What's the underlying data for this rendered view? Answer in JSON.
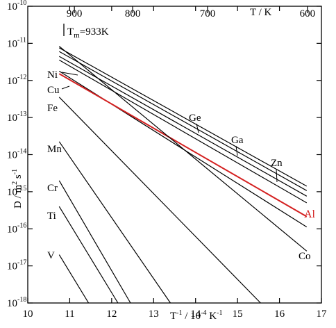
{
  "chart_data": {
    "type": "line",
    "xlabel_parts": [
      "T",
      "-1",
      " / 10",
      "-4",
      " K",
      "-1"
    ],
    "ylabel_parts": [
      "D / m",
      "2",
      " s",
      "-1"
    ],
    "top_axis_label": "T / K",
    "melting_label_parts": [
      "T",
      "m",
      "=933K"
    ],
    "melting_point_K": 933,
    "xlim": [
      10,
      17
    ],
    "ylim_log10": [
      -18,
      -10
    ],
    "y_scale": "log",
    "x_ticks": [
      10,
      11,
      12,
      13,
      14,
      15,
      16,
      17
    ],
    "y_tick_exponents": [
      -10,
      -11,
      -12,
      -13,
      -14,
      -15,
      -16,
      -17,
      -18
    ],
    "top_ticks_K": [
      {
        "label": "900",
        "value": 900
      },
      {
        "label": "800",
        "value": 800
      },
      {
        "label": "700",
        "value": 700
      },
      {
        "label": "600",
        "value": 600
      }
    ],
    "grid": false,
    "series": [
      {
        "name": "Ge",
        "color": "#000000",
        "x": [
          10.75,
          16.65
        ],
        "log10D": [
          -11.12,
          -14.85
        ]
      },
      {
        "name": "Ga",
        "color": "#000000",
        "x": [
          10.75,
          16.65
        ],
        "log10D": [
          -11.22,
          -14.97
        ]
      },
      {
        "name": "Zn",
        "color": "#000000",
        "x": [
          10.75,
          16.65
        ],
        "log10D": [
          -11.35,
          -15.12
        ]
      },
      {
        "name": "Ni",
        "color": "#000000",
        "x": [
          10.75,
          16.65
        ],
        "log10D": [
          -11.45,
          -15.3
        ]
      },
      {
        "name": "Cu",
        "color": "#000000",
        "x": [
          10.75,
          16.65
        ],
        "log10D": [
          -11.75,
          -15.95
        ]
      },
      {
        "name": "Al",
        "color": "#d42020",
        "x": [
          10.75,
          16.65
        ],
        "log10D": [
          -11.82,
          -15.67
        ]
      },
      {
        "name": "Co",
        "color": "#000000",
        "x": [
          10.75,
          16.65
        ],
        "log10D": [
          -11.08,
          -16.6
        ]
      },
      {
        "name": "Fe",
        "color": "#000000",
        "x": [
          10.75,
          15.55
        ],
        "log10D": [
          -12.45,
          -18.0
        ]
      },
      {
        "name": "Mn",
        "color": "#000000",
        "x": [
          10.75,
          13.4
        ],
        "log10D": [
          -13.65,
          -18.0
        ]
      },
      {
        "name": "Cr",
        "color": "#000000",
        "x": [
          10.75,
          12.45
        ],
        "log10D": [
          -14.7,
          -18.0
        ]
      },
      {
        "name": "Ti",
        "color": "#000000",
        "x": [
          10.75,
          12.15
        ],
        "log10D": [
          -15.4,
          -18.0
        ]
      },
      {
        "name": "V",
        "color": "#000000",
        "x": [
          10.75,
          11.45
        ],
        "log10D": [
          -16.7,
          -18.0
        ]
      }
    ]
  }
}
